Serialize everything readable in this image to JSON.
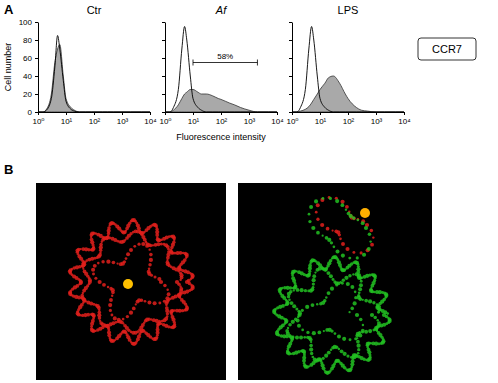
{
  "panel_labels": [
    "A",
    "B"
  ],
  "marker_label": "CCR7",
  "chart_data": [
    {
      "type": "line",
      "title": "Ctr",
      "ylabel": "Cell number",
      "log": "x",
      "x": [
        1,
        1.5,
        2,
        3,
        4,
        5,
        6,
        8,
        10,
        15,
        20,
        30,
        50,
        80,
        100,
        200,
        300,
        500,
        1000,
        2000,
        5000,
        10000
      ],
      "xlim": [
        1,
        10000
      ],
      "xticks": [
        {
          "value": 1,
          "label": "10⁰"
        },
        {
          "value": 10,
          "label": "10¹"
        },
        {
          "value": 100,
          "label": "10²"
        },
        {
          "value": 1000,
          "label": "10³"
        },
        {
          "value": 10000,
          "label": "10⁴"
        }
      ],
      "ylim": [
        0,
        100
      ],
      "yticks": [
        0,
        20,
        40,
        60,
        80,
        100
      ],
      "tick_labels": true,
      "series": [
        {
          "type": "area",
          "color": "#a9a9a9",
          "values": [
            0,
            0,
            3,
            20,
            55,
            70,
            75,
            40,
            15,
            5,
            2,
            0,
            0,
            0,
            0,
            0,
            0,
            0,
            0,
            0,
            0,
            0
          ]
        },
        {
          "type": "line",
          "color": "#000000",
          "values": [
            0,
            0,
            2,
            15,
            50,
            85,
            70,
            35,
            12,
            3,
            1,
            0,
            0,
            0,
            0,
            0,
            0,
            0,
            0,
            0,
            0,
            0
          ]
        }
      ]
    },
    {
      "type": "line",
      "title": "Af",
      "xlabel": "Fluorescence intensity",
      "log": "x",
      "x": [
        1,
        1.5,
        2,
        3,
        4,
        5,
        6,
        8,
        10,
        15,
        20,
        30,
        50,
        80,
        100,
        200,
        300,
        500,
        1000,
        2000,
        5000,
        10000
      ],
      "xlim": [
        1,
        10000
      ],
      "xticks": [
        {
          "value": 1,
          "label": "10⁰"
        },
        {
          "value": 10,
          "label": "10¹"
        },
        {
          "value": 100,
          "label": "10²"
        },
        {
          "value": 1000,
          "label": "10³"
        },
        {
          "value": 10000,
          "label": "10⁴"
        }
      ],
      "ylim": [
        0,
        100
      ],
      "yticks": [
        0,
        20,
        40,
        60,
        80,
        100
      ],
      "tick_labels": "x",
      "annotation": {
        "text": "58%",
        "xrange": [
          10,
          2000
        ]
      },
      "series": [
        {
          "type": "area",
          "color": "#a9a9a9",
          "values": [
            0,
            0,
            2,
            8,
            15,
            20,
            22,
            25,
            25,
            22,
            20,
            20,
            18,
            15,
            14,
            10,
            8,
            5,
            2,
            0,
            0,
            0
          ]
        },
        {
          "type": "line",
          "color": "#000000",
          "values": [
            0,
            0,
            5,
            25,
            70,
            95,
            80,
            40,
            15,
            5,
            2,
            0,
            0,
            0,
            0,
            0,
            0,
            0,
            0,
            0,
            0,
            0
          ]
        }
      ]
    },
    {
      "type": "line",
      "title": "LPS",
      "log": "x",
      "x": [
        1,
        1.5,
        2,
        3,
        4,
        5,
        6,
        8,
        10,
        15,
        20,
        30,
        50,
        80,
        100,
        200,
        300,
        500,
        1000,
        2000,
        5000,
        10000
      ],
      "xlim": [
        1,
        10000
      ],
      "xticks": [
        {
          "value": 1,
          "label": "10⁰"
        },
        {
          "value": 10,
          "label": "10¹"
        },
        {
          "value": 100,
          "label": "10²"
        },
        {
          "value": 1000,
          "label": "10³"
        },
        {
          "value": 10000,
          "label": "10⁴"
        }
      ],
      "ylim": [
        0,
        100
      ],
      "yticks": [
        0,
        20,
        40,
        60,
        80,
        100
      ],
      "tick_labels": "x",
      "series": [
        {
          "type": "area",
          "color": "#a9a9a9",
          "values": [
            0,
            0,
            1,
            3,
            6,
            10,
            14,
            20,
            25,
            32,
            38,
            40,
            32,
            20,
            15,
            5,
            2,
            1,
            0,
            0,
            0,
            0
          ]
        },
        {
          "type": "line",
          "color": "#000000",
          "values": [
            0,
            0,
            5,
            25,
            70,
            95,
            80,
            40,
            15,
            5,
            2,
            0,
            0,
            0,
            0,
            0,
            0,
            0,
            0,
            0,
            0,
            0
          ]
        }
      ]
    }
  ],
  "images": [
    {
      "colors": [
        "#e0201c",
        "#ffc000"
      ]
    },
    {
      "colors": [
        "#22c022",
        "#e0201c",
        "#ffb000"
      ]
    }
  ]
}
